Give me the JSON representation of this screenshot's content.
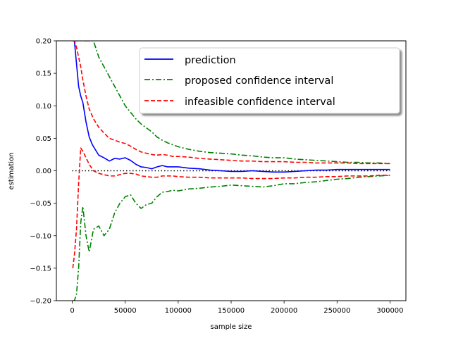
{
  "chart_data": {
    "type": "line",
    "xlabel": "sample size",
    "ylabel": "estimation",
    "xlim": [
      -15000,
      315000
    ],
    "ylim": [
      -0.2,
      0.2
    ],
    "xticks": [
      0,
      50000,
      100000,
      150000,
      200000,
      250000,
      300000
    ],
    "xtick_labels": [
      "0",
      "50000",
      "100000",
      "150000",
      "200000",
      "250000",
      "300000"
    ],
    "yticks": [
      -0.2,
      -0.15,
      -0.1,
      -0.05,
      0.0,
      0.05,
      0.1,
      0.15,
      0.2
    ],
    "ytick_labels": [
      "−0.20",
      "−0.15",
      "−0.10",
      "−0.05",
      "0.00",
      "0.05",
      "0.10",
      "0.15",
      "0.20"
    ],
    "grid": false,
    "legend_position": "top-right",
    "reference_line": {
      "y": 0.0,
      "style": "dotted",
      "color": "#000000"
    },
    "series": [
      {
        "name": "prediction",
        "color": "#0000ff",
        "style": "solid",
        "x": [
          500,
          2000,
          4000,
          6000,
          8000,
          10000,
          13000,
          16000,
          19000,
          22000,
          25000,
          30000,
          35000,
          40000,
          45000,
          50000,
          55000,
          60000,
          65000,
          70000,
          75000,
          80000,
          85000,
          90000,
          95000,
          100000,
          110000,
          120000,
          130000,
          140000,
          150000,
          160000,
          170000,
          180000,
          190000,
          200000,
          210000,
          220000,
          230000,
          240000,
          250000,
          260000,
          270000,
          280000,
          290000,
          300000
        ],
        "y": [
          0.2,
          0.2,
          0.165,
          0.13,
          0.115,
          0.105,
          0.075,
          0.052,
          0.04,
          0.032,
          0.024,
          0.02,
          0.015,
          0.019,
          0.018,
          0.02,
          0.016,
          0.01,
          0.006,
          0.005,
          0.003,
          0.006,
          0.008,
          0.006,
          0.006,
          0.006,
          0.004,
          0.003,
          0.001,
          0.0,
          -0.001,
          -0.001,
          0.0,
          -0.001,
          -0.002,
          -0.002,
          -0.001,
          0.0,
          0.001,
          0.001,
          0.002,
          0.002,
          0.002,
          0.002,
          0.002,
          0.002
        ]
      },
      {
        "name": "proposed confidence interval",
        "color": "#008000",
        "style": "dashdot",
        "x": [
          500,
          2000,
          4000,
          6000,
          8000,
          10000,
          13000,
          16000,
          20000,
          25000,
          30000,
          35000,
          40000,
          45000,
          50000,
          55000,
          60000,
          65000,
          70000,
          75000,
          80000,
          85000,
          90000,
          95000,
          100000,
          110000,
          120000,
          130000,
          140000,
          150000,
          160000,
          170000,
          180000,
          190000,
          200000,
          210000,
          220000,
          230000,
          240000,
          250000,
          260000,
          270000,
          280000,
          290000,
          300000
        ],
        "y_upper": [
          0.2,
          0.2,
          0.2,
          0.2,
          0.2,
          0.2,
          0.2,
          0.2,
          0.2,
          0.175,
          0.16,
          0.145,
          0.13,
          0.115,
          0.1,
          0.09,
          0.08,
          0.072,
          0.066,
          0.06,
          0.052,
          0.047,
          0.043,
          0.04,
          0.037,
          0.033,
          0.03,
          0.028,
          0.027,
          0.026,
          0.024,
          0.023,
          0.021,
          0.02,
          0.02,
          0.018,
          0.017,
          0.016,
          0.015,
          0.014,
          0.013,
          0.013,
          0.012,
          0.012,
          0.011
        ],
        "y_lower": [
          -0.2,
          -0.2,
          -0.19,
          -0.15,
          -0.08,
          -0.055,
          -0.1,
          -0.125,
          -0.09,
          -0.085,
          -0.1,
          -0.09,
          -0.065,
          -0.05,
          -0.04,
          -0.037,
          -0.05,
          -0.058,
          -0.052,
          -0.05,
          -0.04,
          -0.033,
          -0.032,
          -0.03,
          -0.031,
          -0.028,
          -0.027,
          -0.025,
          -0.024,
          -0.022,
          -0.023,
          -0.024,
          -0.025,
          -0.023,
          -0.02,
          -0.02,
          -0.018,
          -0.017,
          -0.015,
          -0.013,
          -0.012,
          -0.01,
          -0.009,
          -0.008,
          -0.007
        ]
      },
      {
        "name": "infeasible confidence interval",
        "color": "#ff0000",
        "style": "dashed",
        "x": [
          500,
          2000,
          4000,
          6000,
          8000,
          10000,
          13000,
          16000,
          20000,
          25000,
          30000,
          35000,
          40000,
          45000,
          50000,
          55000,
          60000,
          65000,
          70000,
          75000,
          80000,
          85000,
          90000,
          95000,
          100000,
          110000,
          120000,
          130000,
          140000,
          150000,
          160000,
          170000,
          180000,
          190000,
          200000,
          210000,
          220000,
          230000,
          240000,
          250000,
          260000,
          270000,
          280000,
          290000,
          300000
        ],
        "y_upper": [
          0.2,
          0.2,
          0.19,
          0.175,
          0.16,
          0.14,
          0.115,
          0.095,
          0.08,
          0.067,
          0.058,
          0.05,
          0.047,
          0.044,
          0.042,
          0.038,
          0.033,
          0.029,
          0.027,
          0.025,
          0.024,
          0.025,
          0.024,
          0.022,
          0.022,
          0.021,
          0.019,
          0.018,
          0.017,
          0.016,
          0.015,
          0.015,
          0.014,
          0.014,
          0.014,
          0.013,
          0.013,
          0.012,
          0.012,
          0.012,
          0.012,
          0.011,
          0.011,
          0.011,
          0.011
        ],
        "y_lower": [
          -0.15,
          -0.13,
          -0.09,
          -0.02,
          0.035,
          0.03,
          0.02,
          0.01,
          0.0,
          -0.004,
          -0.006,
          -0.008,
          -0.008,
          -0.006,
          -0.004,
          -0.004,
          -0.005,
          -0.008,
          -0.009,
          -0.01,
          -0.01,
          -0.008,
          -0.008,
          -0.008,
          -0.009,
          -0.01,
          -0.01,
          -0.011,
          -0.011,
          -0.011,
          -0.011,
          -0.012,
          -0.012,
          -0.012,
          -0.011,
          -0.011,
          -0.01,
          -0.01,
          -0.009,
          -0.009,
          -0.008,
          -0.008,
          -0.008,
          -0.007,
          -0.007
        ]
      }
    ]
  }
}
